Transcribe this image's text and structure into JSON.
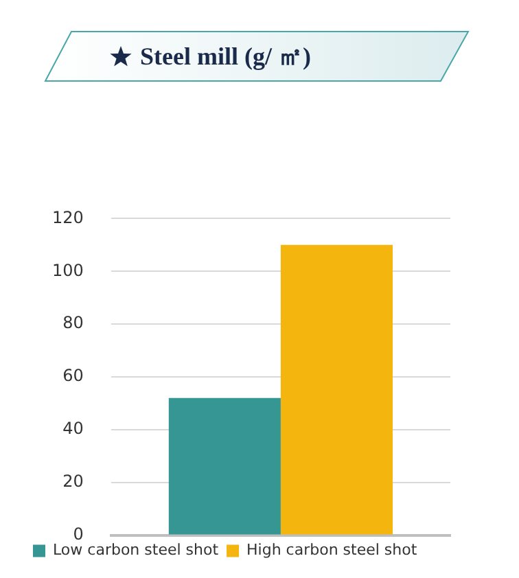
{
  "chart_data": {
    "type": "bar",
    "title": "Steel mill (g/ ㎡)",
    "categories": [
      null
    ],
    "series": [
      {
        "name": "Low carbon steel shot",
        "color": "#359694",
        "values": [
          52
        ]
      },
      {
        "name": "High carbon steel shot",
        "color": "#f4b50f",
        "values": [
          110
        ]
      }
    ],
    "ylim": [
      0,
      120
    ],
    "yticks": [
      0,
      20,
      40,
      60,
      80,
      100,
      120
    ],
    "grid": "y",
    "legend": "bottom"
  }
}
